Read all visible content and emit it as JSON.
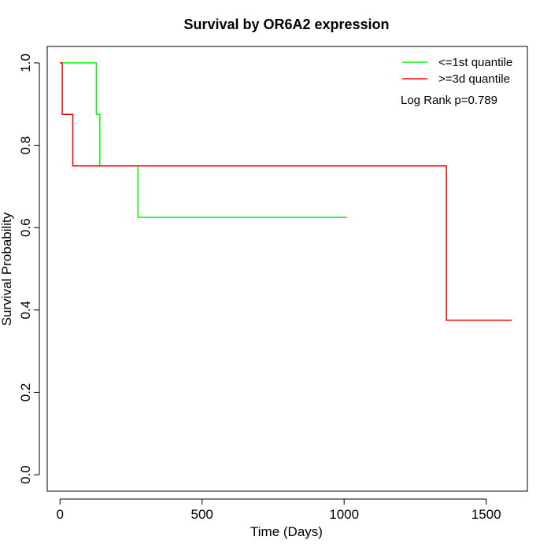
{
  "chart_data": {
    "type": "line",
    "title": "Survival by OR6A2 expression",
    "xlabel": "Time (Days)",
    "ylabel": "Survival Probability",
    "xlim": [
      -45,
      1645
    ],
    "ylim": [
      -0.04,
      1.04
    ],
    "x_ticks": [
      0,
      500,
      1000,
      1500
    ],
    "y_ticks": [
      0.0,
      0.2,
      0.4,
      0.6,
      0.8,
      1.0
    ],
    "x_tick_labels": [
      "0",
      "500",
      "1000",
      "1500"
    ],
    "y_tick_labels": [
      "0.0",
      "0.2",
      "0.4",
      "0.6",
      "0.8",
      "1.0"
    ],
    "grid": false,
    "legend_position": "top-right",
    "series": [
      {
        "name": "<=1st quantile",
        "color": "#00ff00",
        "step_points": [
          [
            0,
            1.0
          ],
          [
            128,
            1.0
          ],
          [
            128,
            0.875
          ],
          [
            140,
            0.875
          ],
          [
            140,
            0.75
          ],
          [
            275,
            0.75
          ],
          [
            275,
            0.625
          ],
          [
            1010,
            0.625
          ]
        ]
      },
      {
        "name": ">=3d quantile",
        "color": "#ff0000",
        "step_points": [
          [
            0,
            1.0
          ],
          [
            8,
            1.0
          ],
          [
            8,
            0.875
          ],
          [
            45,
            0.875
          ],
          [
            45,
            0.75
          ],
          [
            1360,
            0.75
          ],
          [
            1360,
            0.375
          ],
          [
            1590,
            0.375
          ]
        ]
      }
    ],
    "annotations": [
      "Log Rank p=0.789"
    ]
  }
}
